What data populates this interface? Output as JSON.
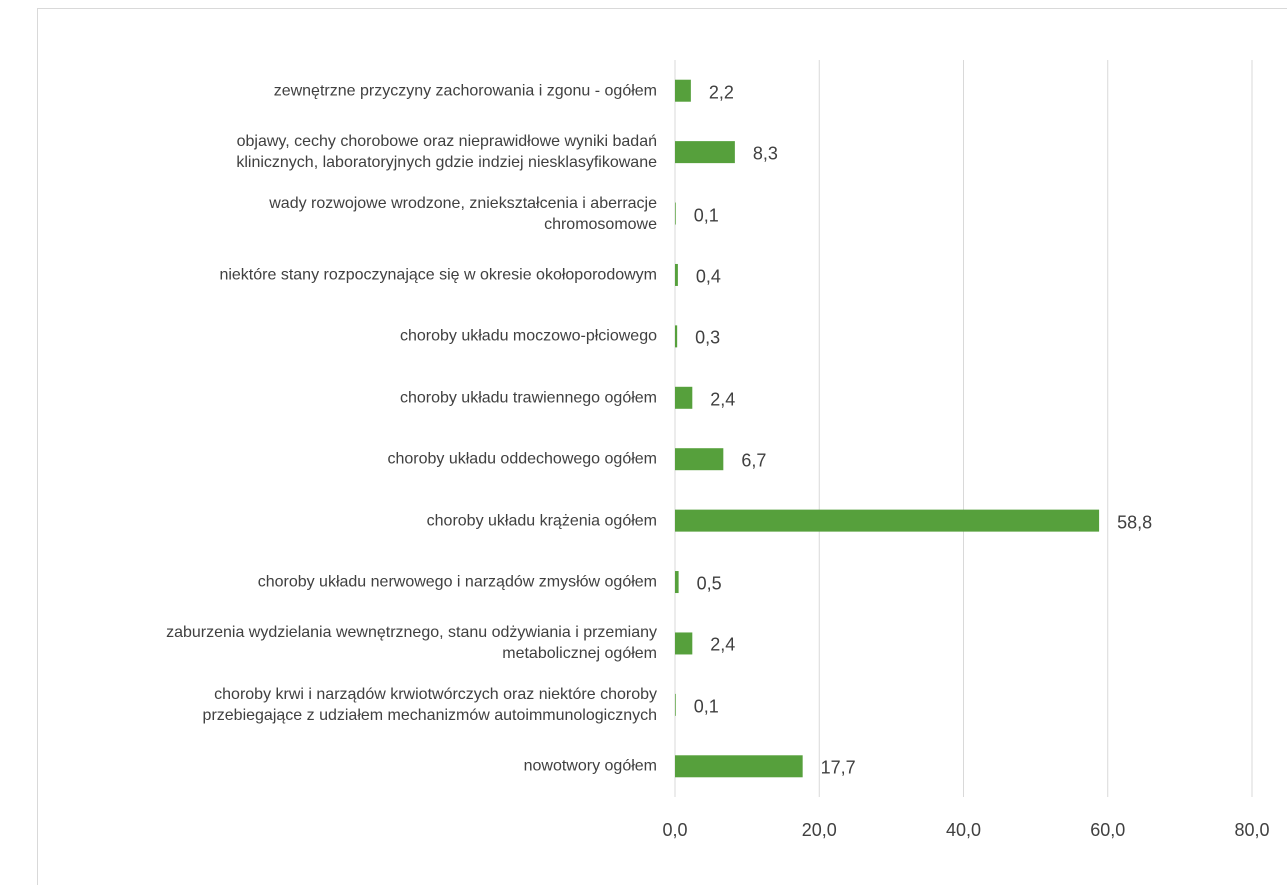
{
  "chart_data": {
    "type": "barh",
    "categories": [
      "zewnętrzne przyczyny zachorowania i zgonu - ogółem",
      "objawy, cechy chorobowe oraz nieprawidłowe wyniki badań\nklinicznych, laboratoryjnych gdzie indziej niesklasyfikowane",
      "wady rozwojowe wrodzone, zniekształcenia i aberracje\nchromosomowe",
      "niektóre stany rozpoczynające się w okresie okołoporodowym",
      "choroby układu moczowo-płciowego",
      "choroby układu trawiennego ogółem",
      "choroby układu oddechowego ogółem",
      "choroby układu krążenia ogółem",
      "choroby układu nerwowego i narządów zmysłów ogółem",
      "zaburzenia wydzielania wewnętrznego, stanu odżywiania i przemiany\nmetabolicznej ogółem",
      "choroby krwi i narządów krwiotwórczych oraz niektóre choroby\nprzebiegające z udziałem mechanizmów autoimmunologicznych",
      "nowotwory ogółem"
    ],
    "values": [
      2.2,
      8.3,
      0.1,
      0.4,
      0.3,
      2.4,
      6.7,
      58.8,
      0.5,
      2.4,
      0.1,
      17.7
    ],
    "value_labels": [
      "2,2",
      "8,3",
      "0,1",
      "0,4",
      "0,3",
      "2,4",
      "6,7",
      "58,8",
      "0,5",
      "2,4",
      "0,1",
      "17,7"
    ],
    "color": "#56a03c",
    "xlim": [
      0,
      80
    ],
    "xticks": [
      {
        "value": 0,
        "label": "0,0"
      },
      {
        "value": 20,
        "label": "20,0"
      },
      {
        "value": 40,
        "label": "40,0"
      },
      {
        "value": 60,
        "label": "60,0"
      },
      {
        "value": 80,
        "label": "80,0"
      }
    ],
    "grid": true
  }
}
